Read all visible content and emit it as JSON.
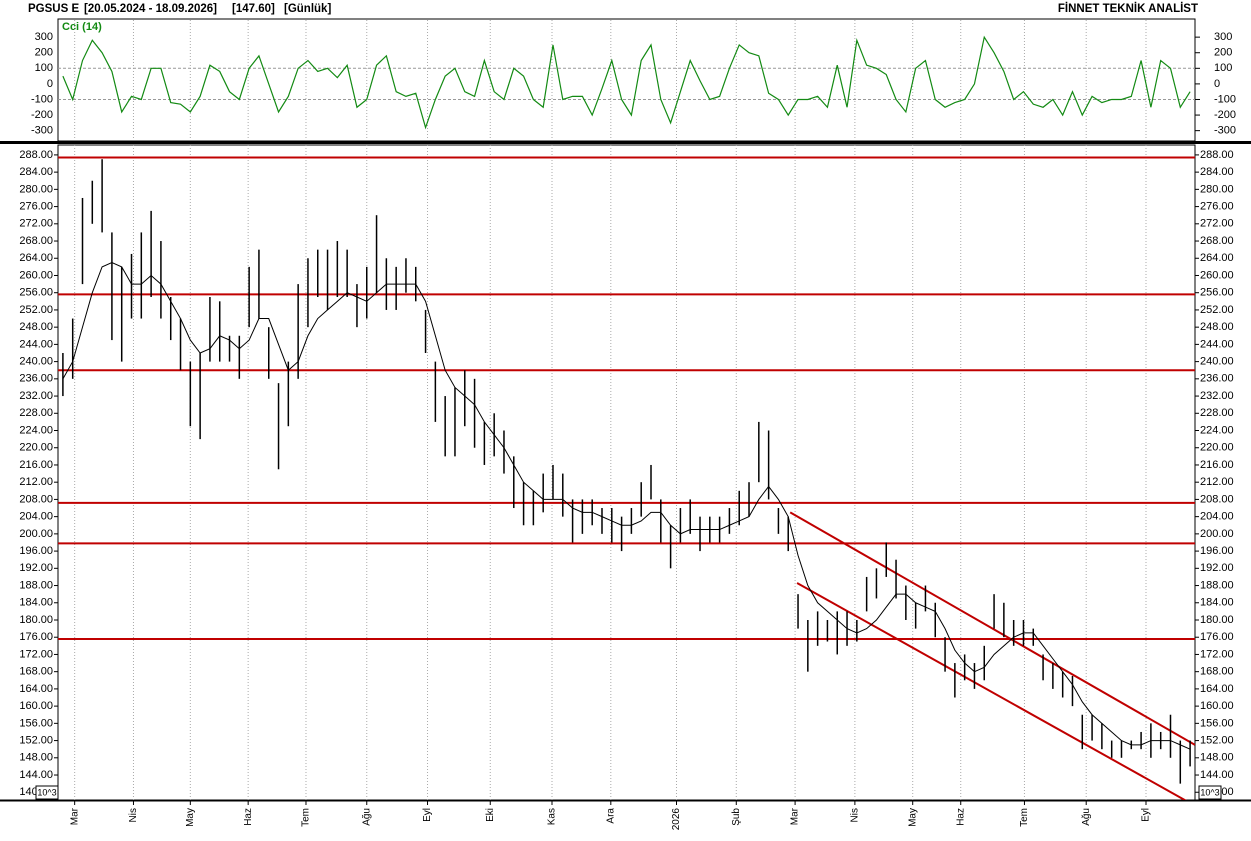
{
  "header": {
    "symbol": "PGSUS E",
    "range": "[20.05.2024 - 18.09.2026]",
    "last": "[147.60]",
    "period": "[Günlük]",
    "brand": "FİNNET TEKNİK ANALİST"
  },
  "chart_data": [
    {
      "type": "line",
      "title": "Cci (14)",
      "color": "#138a13",
      "xlim": [
        -0.5,
        115.5
      ],
      "ylim": [
        -360,
        410
      ],
      "yticks": [
        300,
        200,
        100,
        0,
        -100,
        -200,
        -300
      ],
      "dashed_levels": [
        100,
        -100
      ],
      "values": [
        50,
        -100,
        150,
        280,
        200,
        80,
        -180,
        -80,
        -100,
        100,
        100,
        -120,
        -130,
        -180,
        -80,
        120,
        80,
        -50,
        -100,
        100,
        180,
        0,
        -180,
        -80,
        100,
        150,
        80,
        100,
        40,
        120,
        -150,
        -100,
        120,
        180,
        -50,
        -80,
        -60,
        -280,
        -100,
        50,
        100,
        -50,
        -80,
        150,
        -50,
        -100,
        100,
        50,
        -100,
        -150,
        250,
        -100,
        -80,
        -80,
        -200,
        -30,
        150,
        -100,
        -200,
        150,
        250,
        -100,
        -250,
        -50,
        150,
        20,
        -100,
        -80,
        100,
        250,
        200,
        180,
        -60,
        -100,
        -200,
        -100,
        -100,
        -80,
        -150,
        120,
        -150,
        280,
        120,
        100,
        60,
        -100,
        -180,
        100,
        150,
        -100,
        -150,
        -120,
        -100,
        0,
        300,
        200,
        80,
        -100,
        -50,
        -130,
        -150,
        -100,
        -200,
        -50,
        -200,
        -80,
        -120,
        -100,
        -100,
        -80,
        150,
        -150,
        150,
        100,
        -150,
        -50
      ]
    },
    {
      "type": "ohlc",
      "color": "#000000",
      "xlim": [
        -0.5,
        115.5
      ],
      "ylim": [
        138.2,
        290.3
      ],
      "yticks": [
        {
          "value": 288,
          "label": "288.00"
        },
        {
          "value": 284,
          "label": "284.00"
        },
        {
          "value": 280,
          "label": "280.00"
        },
        {
          "value": 276,
          "label": "276.00"
        },
        {
          "value": 272,
          "label": "272.00"
        },
        {
          "value": 268,
          "label": "268.00"
        },
        {
          "value": 264,
          "label": "264.00"
        },
        {
          "value": 260,
          "label": "260.00"
        },
        {
          "value": 256,
          "label": "256.00"
        },
        {
          "value": 252,
          "label": "252.00"
        },
        {
          "value": 248,
          "label": "248.00"
        },
        {
          "value": 244,
          "label": "244.00"
        },
        {
          "value": 240,
          "label": "240.00"
        },
        {
          "value": 236,
          "label": "236.00"
        },
        {
          "value": 232,
          "label": "232.00"
        },
        {
          "value": 228,
          "label": "228.00"
        },
        {
          "value": 224,
          "label": "224.00"
        },
        {
          "value": 220,
          "label": "220.00"
        },
        {
          "value": 216,
          "label": "216.00"
        },
        {
          "value": 212,
          "label": "212.00"
        },
        {
          "value": 208,
          "label": "208.00"
        },
        {
          "value": 204,
          "label": "204.00"
        },
        {
          "value": 200,
          "label": "200.00"
        },
        {
          "value": 196,
          "label": "196.00"
        },
        {
          "value": 192,
          "label": "192.00"
        },
        {
          "value": 188,
          "label": "188.00"
        },
        {
          "value": 184,
          "label": "184.00"
        },
        {
          "value": 180,
          "label": "180.00"
        },
        {
          "value": 176,
          "label": "176.00"
        },
        {
          "value": 172,
          "label": "172.00"
        },
        {
          "value": 168,
          "label": "168.00"
        },
        {
          "value": 164,
          "label": "164.00"
        },
        {
          "value": 160,
          "label": "160.00"
        },
        {
          "value": 156,
          "label": "156.00"
        },
        {
          "value": 152,
          "label": "152.00"
        },
        {
          "value": 148,
          "label": "148.00"
        },
        {
          "value": 144,
          "label": "144.00"
        },
        {
          "value": 140,
          "label": "140.00"
        }
      ],
      "xticks": [
        {
          "value": 1.2,
          "label": "Mar"
        },
        {
          "value": 7.2,
          "label": "Nis"
        },
        {
          "value": 13,
          "label": "May"
        },
        {
          "value": 18.9,
          "label": "Haz"
        },
        {
          "value": 24.8,
          "label": "Tem"
        },
        {
          "value": 31,
          "label": "Ağu"
        },
        {
          "value": 37.2,
          "label": "Eyl"
        },
        {
          "value": 43.6,
          "label": "Eki"
        },
        {
          "value": 49.9,
          "label": "Kas"
        },
        {
          "value": 55.9,
          "label": "Ara"
        },
        {
          "value": 62.6,
          "label": "2026"
        },
        {
          "value": 68.7,
          "label": "Şub"
        },
        {
          "value": 74.7,
          "label": "Mar"
        },
        {
          "value": 80.8,
          "label": "Nis"
        },
        {
          "value": 86.7,
          "label": "May"
        },
        {
          "value": 91.6,
          "label": "Haz"
        },
        {
          "value": 98.1,
          "label": "Tem"
        },
        {
          "value": 104.4,
          "label": "Ağu"
        },
        {
          "value": 110.5,
          "label": "Eyl"
        }
      ],
      "grid_x": true,
      "scale_note": "10^3",
      "high": [
        242,
        250,
        278,
        282,
        287,
        270,
        262,
        265,
        270,
        275,
        268,
        255,
        250,
        240,
        242,
        255,
        254,
        246,
        246,
        262,
        266,
        248,
        235,
        240,
        258,
        264,
        266,
        266,
        268,
        266,
        258,
        262,
        274,
        264,
        262,
        264,
        262,
        252,
        240,
        232,
        234,
        238,
        236,
        226,
        228,
        224,
        218,
        212,
        210,
        214,
        216,
        214,
        208,
        208,
        208,
        206,
        206,
        204,
        206,
        212,
        216,
        208,
        202,
        206,
        208,
        204,
        204,
        204,
        206,
        210,
        212,
        226,
        224,
        206,
        204,
        186,
        180,
        182,
        180,
        182,
        182,
        180,
        190,
        192,
        198,
        194,
        188,
        184,
        188,
        184,
        176,
        170,
        172,
        170,
        174,
        186,
        184,
        180,
        180,
        178,
        172,
        170,
        168,
        167,
        158,
        158,
        156,
        152,
        152,
        152,
        154,
        156,
        154,
        158,
        152,
        152
      ],
      "low": [
        232,
        236,
        258,
        272,
        270,
        245,
        240,
        250,
        250,
        255,
        250,
        245,
        238,
        225,
        222,
        240,
        240,
        240,
        236,
        248,
        250,
        236,
        215,
        225,
        236,
        248,
        255,
        252,
        255,
        255,
        248,
        250,
        256,
        252,
        252,
        256,
        254,
        242,
        226,
        218,
        218,
        225,
        220,
        216,
        218,
        214,
        206,
        202,
        202,
        205,
        208,
        204,
        198,
        200,
        202,
        200,
        198,
        196,
        200,
        204,
        208,
        198,
        192,
        198,
        200,
        196,
        198,
        198,
        200,
        202,
        204,
        212,
        208,
        200,
        196,
        178,
        168,
        174,
        175,
        172,
        174,
        175,
        182,
        185,
        190,
        185,
        180,
        178,
        182,
        176,
        168,
        162,
        166,
        164,
        166,
        178,
        176,
        174,
        174,
        174,
        166,
        164,
        162,
        160,
        150,
        152,
        150,
        148,
        148,
        150,
        150,
        148,
        150,
        148,
        142,
        146
      ],
      "ma": {
        "color": "#000000",
        "values": [
          236,
          240,
          248,
          256,
          262,
          263,
          262,
          258,
          258,
          260,
          258,
          254,
          250,
          245,
          242,
          243,
          246,
          245,
          243,
          245,
          250,
          250,
          244,
          238,
          240,
          246,
          250,
          252,
          254,
          256,
          255,
          254,
          256,
          258,
          258,
          258,
          258,
          254,
          246,
          238,
          234,
          232,
          230,
          226,
          223,
          220,
          216,
          212,
          210,
          208,
          208,
          208,
          206,
          205,
          205,
          204,
          203,
          202,
          202,
          203,
          205,
          205,
          202,
          200,
          201,
          201,
          201,
          201,
          202,
          203,
          204,
          208,
          211,
          208,
          204,
          195,
          188,
          184,
          182,
          180,
          178,
          177,
          178,
          180,
          183,
          186,
          186,
          184,
          183,
          182,
          178,
          173,
          170,
          168,
          169,
          172,
          174,
          176,
          177,
          177,
          174,
          171,
          168,
          165,
          161,
          158,
          156,
          154,
          152,
          151,
          151,
          152,
          152,
          152,
          151,
          150
        ]
      },
      "levels": {
        "color": "#c00000",
        "values": [
          287.4,
          255.6,
          238.0,
          207.2,
          197.8,
          175.6
        ]
      },
      "channels": {
        "color": "#c00000",
        "lines": [
          {
            "x": [
              74.2,
              115.5
            ],
            "y": [
              205,
              151
            ]
          },
          {
            "x": [
              74.9,
              115
            ],
            "y": [
              188.6,
              137.5
            ]
          }
        ]
      }
    }
  ]
}
